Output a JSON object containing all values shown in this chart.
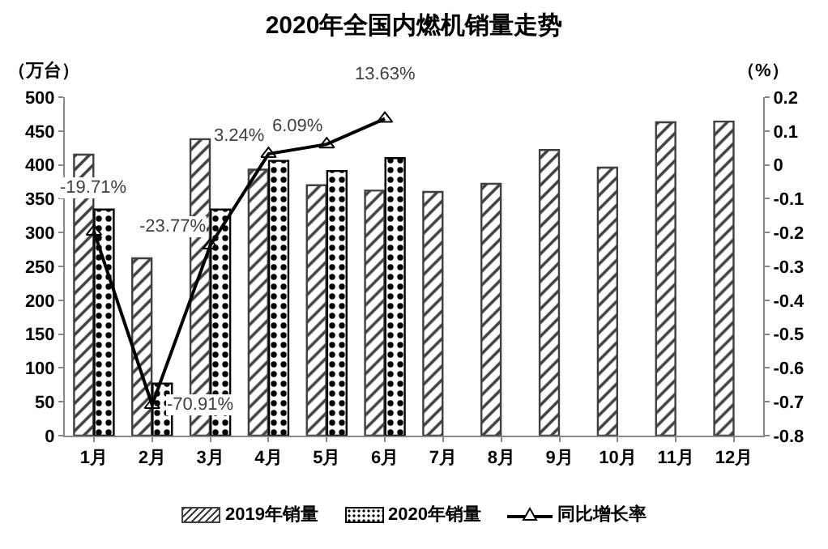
{
  "chart_data": {
    "type": "bar",
    "title": "2020年全国内燃机销量走势",
    "ylabel": "（万台）",
    "y2label": "（%）",
    "categories": [
      "1月",
      "2月",
      "3月",
      "4月",
      "5月",
      "6月",
      "7月",
      "8月",
      "9月",
      "10月",
      "11月",
      "12月"
    ],
    "series": [
      {
        "name": "2019年销量",
        "color": "#404040",
        "values": [
          415,
          262,
          438,
          393,
          370,
          362,
          360,
          372,
          422,
          396,
          463,
          464
        ]
      },
      {
        "name": "2020年销量",
        "color": "#000000",
        "values": [
          334,
          77,
          334,
          406,
          391,
          410,
          null,
          null,
          null,
          null,
          null,
          null
        ]
      },
      {
        "name": "同比增长率",
        "type": "line",
        "axis": "y2",
        "color": "#000000",
        "marker": "triangle",
        "values": [
          -0.1971,
          -0.7091,
          -0.2377,
          0.0324,
          0.0609,
          0.1363,
          null,
          null,
          null,
          null,
          null,
          null
        ],
        "value_labels": [
          "-19.71%",
          "-70.91%",
          "-23.77%",
          "3.24%",
          "6.09%",
          "13.63%",
          null,
          null,
          null,
          null,
          null,
          null
        ]
      }
    ],
    "ylim": [
      0,
      500
    ],
    "yticks": [
      0,
      50,
      100,
      150,
      200,
      250,
      300,
      350,
      400,
      450,
      500
    ],
    "y2lim": [
      -0.8,
      0.2
    ],
    "y2ticks": [
      -0.8,
      -0.7,
      -0.6,
      -0.5,
      -0.4,
      -0.3,
      -0.2,
      -0.1,
      0,
      0.1,
      0.2
    ],
    "grid": false,
    "legend": "bottom"
  }
}
